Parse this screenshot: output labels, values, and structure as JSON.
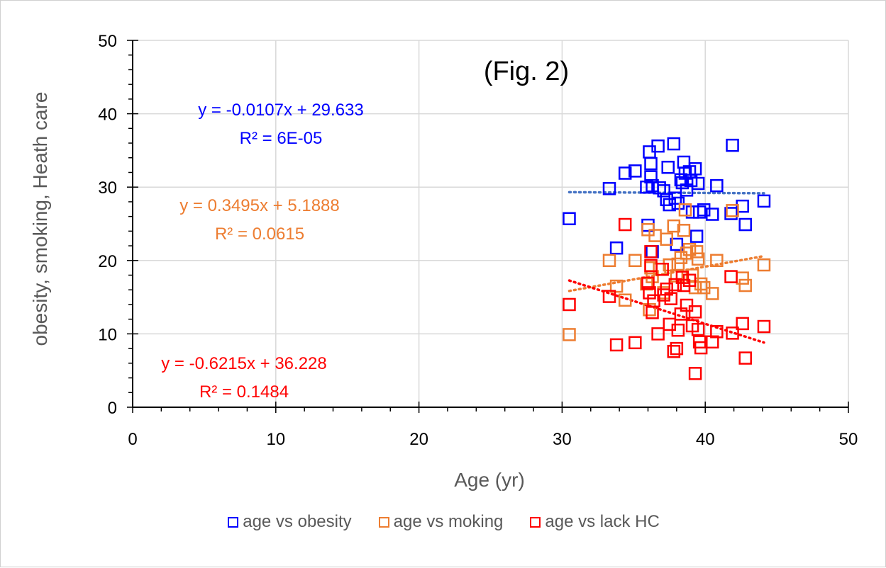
{
  "chart_data": {
    "type": "scatter",
    "title": "(Fig. 2)",
    "xlabel": "Age (yr)",
    "ylabel": "obesity, smoking, Heath care",
    "xlim": [
      0,
      50
    ],
    "ylim": [
      0,
      50
    ],
    "x_ticks": [
      "0",
      "10",
      "20",
      "30",
      "40",
      "50"
    ],
    "y_ticks": [
      "0",
      "10",
      "20",
      "30",
      "40",
      "50"
    ],
    "grid": true,
    "legend_position": "bottom",
    "series": [
      {
        "name": "age vs obesity",
        "color": "#0000ff",
        "trend_color": "#4472c4",
        "trendline": {
          "slope": -0.0107,
          "intercept": 29.633,
          "x_range": [
            30.5,
            44.1
          ]
        },
        "equation": "y = -0.0107x + 29.633",
        "r2": "R² = 6E-05",
        "points": [
          [
            30.5,
            25.7
          ],
          [
            33.3,
            29.8
          ],
          [
            33.8,
            21.7
          ],
          [
            34.4,
            31.9
          ],
          [
            35.1,
            32.2
          ],
          [
            35.9,
            30.0
          ],
          [
            36.0,
            24.8
          ],
          [
            36.1,
            34.8
          ],
          [
            36.2,
            33.2
          ],
          [
            36.2,
            31.4
          ],
          [
            36.3,
            30.2
          ],
          [
            36.3,
            21.2
          ],
          [
            36.7,
            35.6
          ],
          [
            36.8,
            29.9
          ],
          [
            37.1,
            29.5
          ],
          [
            37.3,
            28.3
          ],
          [
            37.4,
            32.7
          ],
          [
            37.5,
            27.6
          ],
          [
            37.8,
            35.9
          ],
          [
            37.9,
            28.5
          ],
          [
            38.0,
            22.2
          ],
          [
            38.1,
            27.8
          ],
          [
            38.3,
            31.0
          ],
          [
            38.4,
            30.6
          ],
          [
            38.5,
            33.4
          ],
          [
            38.6,
            31.9
          ],
          [
            38.7,
            29.6
          ],
          [
            38.9,
            32.1
          ],
          [
            39.0,
            30.9
          ],
          [
            39.1,
            26.6
          ],
          [
            39.3,
            32.5
          ],
          [
            39.4,
            23.3
          ],
          [
            39.5,
            30.5
          ],
          [
            39.6,
            26.6
          ],
          [
            39.9,
            26.9
          ],
          [
            40.5,
            26.3
          ],
          [
            40.8,
            30.2
          ],
          [
            41.8,
            26.4
          ],
          [
            41.9,
            35.7
          ],
          [
            42.6,
            27.4
          ],
          [
            42.8,
            24.9
          ],
          [
            44.1,
            28.1
          ]
        ]
      },
      {
        "name": "age vs moking",
        "color": "#ed7d31",
        "trend_color": "#ed7d31",
        "trendline": {
          "slope": 0.3495,
          "intercept": 5.1888,
          "x_range": [
            30.5,
            44.1
          ]
        },
        "equation": "y = 0.3495x + 5.1888",
        "r2": "R² = 0.0615",
        "points": [
          [
            30.5,
            9.9
          ],
          [
            33.3,
            20.0
          ],
          [
            33.8,
            16.5
          ],
          [
            34.4,
            14.6
          ],
          [
            35.1,
            20.0
          ],
          [
            35.9,
            16.8
          ],
          [
            36.0,
            24.2
          ],
          [
            36.1,
            13.3
          ],
          [
            36.2,
            19.0
          ],
          [
            36.3,
            17.8
          ],
          [
            36.5,
            23.4
          ],
          [
            36.8,
            18.8
          ],
          [
            37.1,
            15.6
          ],
          [
            37.3,
            22.9
          ],
          [
            37.5,
            19.4
          ],
          [
            37.8,
            24.7
          ],
          [
            38.0,
            17.9
          ],
          [
            38.1,
            19.5
          ],
          [
            38.3,
            20.4
          ],
          [
            38.5,
            24.1
          ],
          [
            38.6,
            26.9
          ],
          [
            38.7,
            21.0
          ],
          [
            38.9,
            21.5
          ],
          [
            39.1,
            18.0
          ],
          [
            39.3,
            16.3
          ],
          [
            39.4,
            21.2
          ],
          [
            39.5,
            20.2
          ],
          [
            39.7,
            16.8
          ],
          [
            39.9,
            16.3
          ],
          [
            40.5,
            15.5
          ],
          [
            40.8,
            20.0
          ],
          [
            41.9,
            26.8
          ],
          [
            42.6,
            17.6
          ],
          [
            42.8,
            16.6
          ],
          [
            44.1,
            19.4
          ]
        ]
      },
      {
        "name": "age vs lack HC",
        "color": "#ff0000",
        "trend_color": "#ff0000",
        "trendline": {
          "slope": -0.6215,
          "intercept": 36.228,
          "x_range": [
            30.5,
            44.1
          ]
        },
        "equation": "y = -0.6215x + 36.228",
        "r2": "R² = 0.1484",
        "points": [
          [
            30.5,
            14.0
          ],
          [
            33.3,
            15.1
          ],
          [
            33.8,
            8.5
          ],
          [
            34.4,
            24.9
          ],
          [
            35.1,
            8.8
          ],
          [
            36.0,
            16.9
          ],
          [
            36.1,
            15.6
          ],
          [
            36.2,
            21.2
          ],
          [
            36.2,
            19.3
          ],
          [
            36.3,
            12.9
          ],
          [
            36.4,
            14.5
          ],
          [
            36.7,
            10.0
          ],
          [
            37.0,
            18.8
          ],
          [
            37.1,
            15.3
          ],
          [
            37.3,
            16.1
          ],
          [
            37.5,
            11.3
          ],
          [
            37.6,
            14.8
          ],
          [
            37.8,
            7.6
          ],
          [
            37.9,
            16.7
          ],
          [
            38.0,
            8.0
          ],
          [
            38.1,
            10.5
          ],
          [
            38.3,
            12.7
          ],
          [
            38.4,
            17.7
          ],
          [
            38.5,
            16.6
          ],
          [
            38.7,
            13.9
          ],
          [
            38.9,
            17.3
          ],
          [
            39.1,
            11.1
          ],
          [
            39.3,
            13.0
          ],
          [
            39.3,
            4.6
          ],
          [
            39.5,
            10.6
          ],
          [
            39.6,
            8.9
          ],
          [
            39.7,
            8.1
          ],
          [
            40.5,
            8.9
          ],
          [
            40.8,
            10.3
          ],
          [
            41.8,
            17.8
          ],
          [
            41.9,
            10.1
          ],
          [
            42.6,
            11.4
          ],
          [
            42.8,
            6.7
          ],
          [
            44.1,
            11.0
          ]
        ]
      }
    ]
  }
}
